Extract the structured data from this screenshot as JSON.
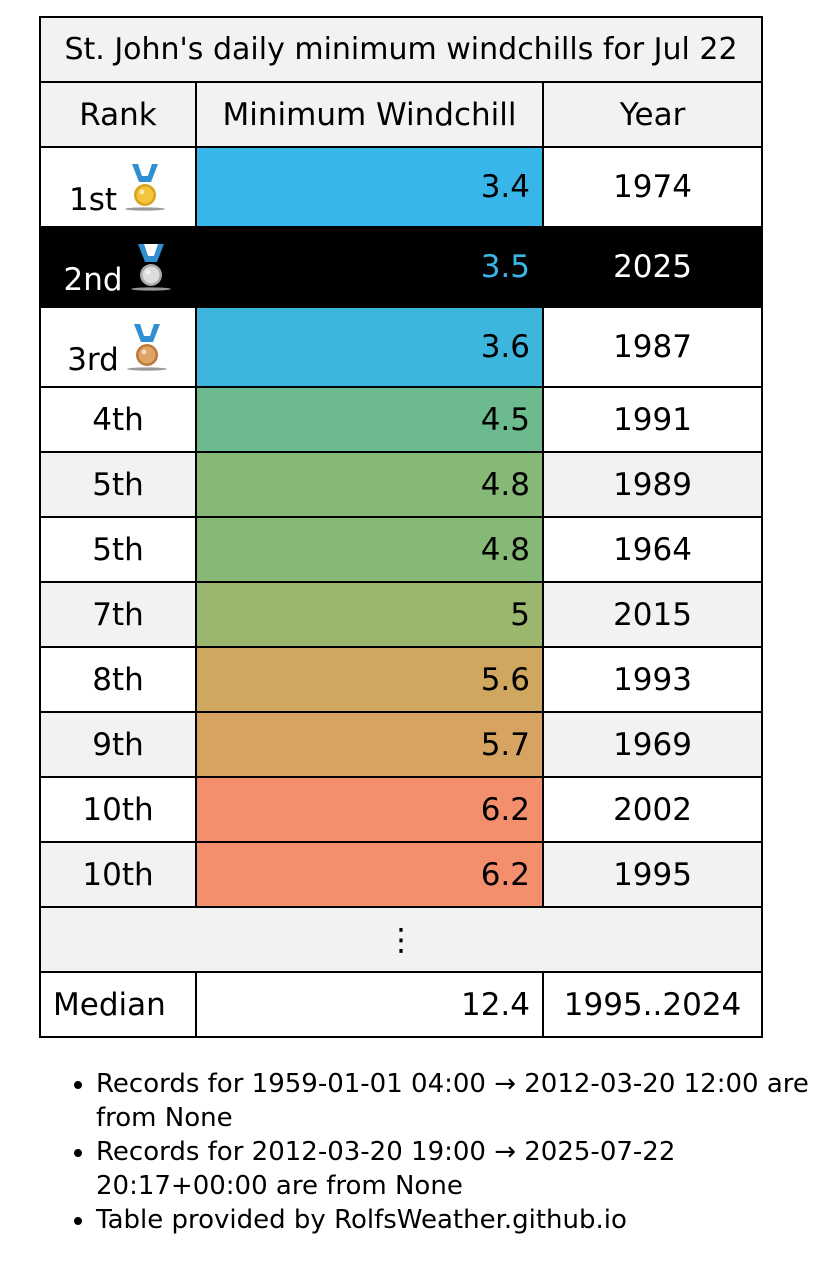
{
  "title": "St. John's daily minimum windchills for Jul 22",
  "columns": {
    "rank": "Rank",
    "value": "Minimum Windchill",
    "year": "Year"
  },
  "rows": [
    {
      "rank": "1st",
      "medal": "gold-medal-icon",
      "value": "3.4",
      "year": "1974",
      "color": "#38b6ea"
    },
    {
      "rank": "2nd",
      "medal": "silver-medal-icon",
      "value": "3.5",
      "year": "2025",
      "color": "#38b6ea",
      "highlight": true
    },
    {
      "rank": "3rd",
      "medal": "bronze-medal-icon",
      "value": "3.6",
      "year": "1987",
      "color": "#3db5dc"
    },
    {
      "rank": "4th",
      "value": "4.5",
      "year": "1991",
      "color": "#6cba8d"
    },
    {
      "rank": "5th",
      "value": "4.8",
      "year": "1989",
      "color": "#86b876"
    },
    {
      "rank": "5th",
      "value": "4.8",
      "year": "1964",
      "color": "#86b876"
    },
    {
      "rank": "7th",
      "value": "5",
      "year": "2015",
      "color": "#9bb66d"
    },
    {
      "rank": "8th",
      "value": "5.6",
      "year": "1993",
      "color": "#cfa75e"
    },
    {
      "rank": "9th",
      "value": "5.7",
      "year": "1969",
      "color": "#d6a460"
    },
    {
      "rank": "10th",
      "value": "6.2",
      "year": "2002",
      "color": "#f48f6e"
    },
    {
      "rank": "10th",
      "value": "6.2",
      "year": "1995",
      "color": "#f48f6e"
    }
  ],
  "ellipsis": "⋮",
  "median": {
    "label": "Median",
    "value": "12.4",
    "years": "1995..2024"
  },
  "notes": [
    "Records for 1959-01-01 04:00 → 2012-03-20 12:00 are from None",
    "Records for 2012-03-20 19:00 → 2025-07-22 20:17+00:00 are from None",
    "Table provided by RolfsWeather.github.io"
  ]
}
